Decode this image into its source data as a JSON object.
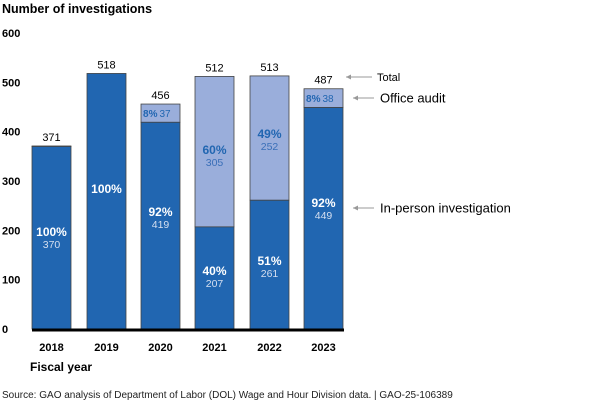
{
  "chart_data": {
    "type": "bar",
    "stacked": true,
    "ylabel": "Number of investigations",
    "xlabel": "Fiscal year",
    "ylim": [
      0,
      600
    ],
    "yticks": [
      "0",
      "100",
      "200",
      "300",
      "400",
      "500",
      "600"
    ],
    "categories": [
      "2018",
      "2019",
      "2020",
      "2021",
      "2022",
      "2023"
    ],
    "totals": [
      "371",
      "518",
      "456",
      "512",
      "513",
      "487"
    ],
    "series": [
      {
        "name": "In-person investigation",
        "color": "#2166b1",
        "values": [
          370,
          518,
          419,
          207,
          261,
          449
        ],
        "value_labels": [
          "370",
          "",
          "419",
          "207",
          "261",
          "449"
        ],
        "pct_labels": [
          "100%",
          "100%",
          "92%",
          "40%",
          "51%",
          "92%"
        ]
      },
      {
        "name": "Office audit",
        "color": "#9aaedb",
        "values": [
          1,
          0,
          37,
          305,
          252,
          38
        ],
        "value_labels": [
          "",
          "",
          "37",
          "305",
          "252",
          "38"
        ],
        "pct_labels": [
          "",
          "",
          "8%",
          "60%",
          "49%",
          "8%"
        ]
      }
    ],
    "annotations": {
      "total": "Total",
      "office": "Office audit",
      "inperson": "In-person investigation"
    },
    "source": "Source: GAO analysis of Department of Labor (DOL) Wage and Hour Division data.  |  GAO-25-106389"
  }
}
